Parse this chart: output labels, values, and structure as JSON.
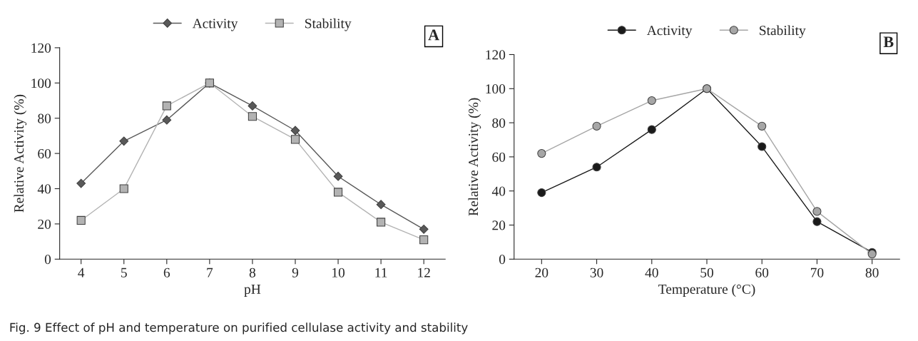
{
  "chart_data": [
    {
      "type": "line",
      "xlabel": "pH",
      "ylabel": "Relative Activity (%)",
      "categories": [
        "4",
        "5",
        "6",
        "7",
        "8",
        "9",
        "10",
        "11",
        "12"
      ],
      "ylim": [
        0,
        120
      ],
      "yticks": [
        0,
        20,
        40,
        60,
        80,
        100,
        120
      ],
      "grid": false,
      "legend": "top",
      "series": [
        {
          "name": "Activity",
          "color": "#595959",
          "marker": "diamond",
          "values": [
            43,
            67,
            79,
            100,
            87,
            73,
            47,
            31,
            17
          ]
        },
        {
          "name": "Stability",
          "color": "#b3b3b3",
          "marker": "square",
          "values": [
            22,
            40,
            87,
            100,
            81,
            68,
            38,
            21,
            11
          ]
        }
      ],
      "annotations": [
        "A",
        "Fig. 9 Effect of pH and temperature on purified cellulase activity and stability"
      ]
    },
    {
      "type": "line",
      "xlabel": "Temperature (°C)",
      "ylabel": "Relative Activity (%)",
      "categories": [
        "20",
        "30",
        "40",
        "50",
        "60",
        "70",
        "80"
      ],
      "ylim": [
        0,
        120
      ],
      "yticks": [
        0,
        20,
        40,
        60,
        80,
        100,
        120
      ],
      "grid": false,
      "legend": "top",
      "series": [
        {
          "name": "Activity",
          "color": "#1a1a1a",
          "marker": "circle",
          "values": [
            39,
            54,
            76,
            100,
            66,
            22,
            4
          ]
        },
        {
          "name": "Stability",
          "color": "#a6a6a6",
          "marker": "circle",
          "values": [
            62,
            78,
            93,
            100,
            78,
            28,
            3
          ]
        }
      ],
      "annotations": [
        "B"
      ]
    }
  ]
}
